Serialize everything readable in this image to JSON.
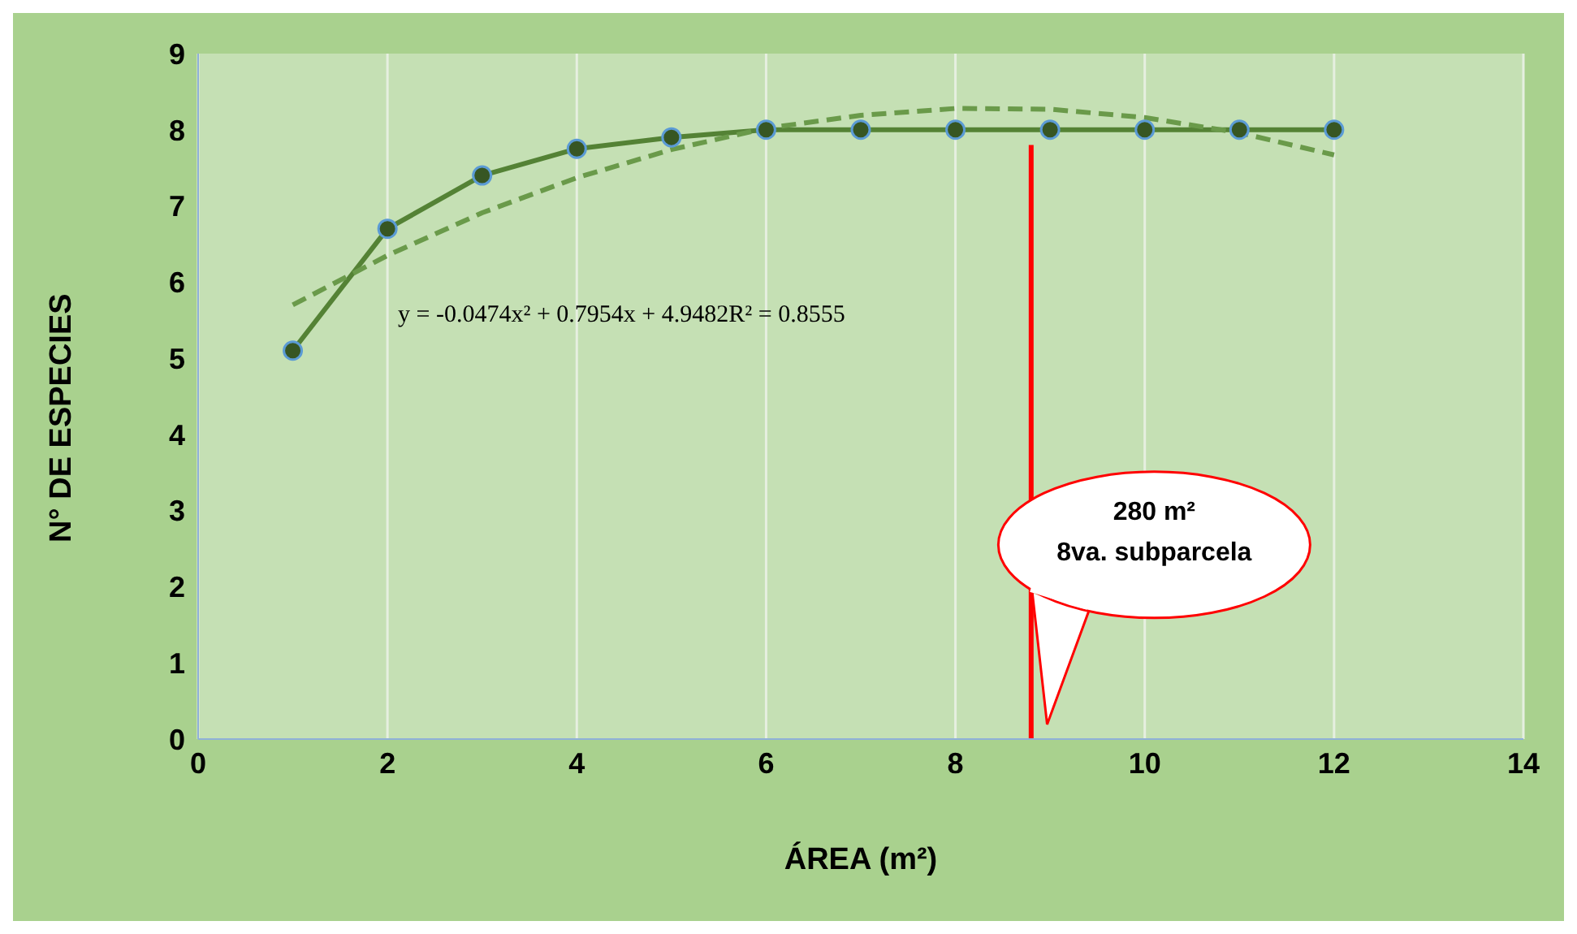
{
  "chart_data": {
    "type": "line",
    "xlabel": "ÁREA (m²)",
    "ylabel": "N° DE ESPECIES",
    "xlim": [
      0,
      14
    ],
    "xticks": [
      0,
      2,
      4,
      6,
      8,
      10,
      12,
      14
    ],
    "ylim": [
      0,
      9
    ],
    "yticks": [
      0,
      1,
      2,
      3,
      4,
      5,
      6,
      7,
      8,
      9
    ],
    "grid": "x",
    "marker": "circle",
    "series": [
      {
        "color": "#548235",
        "x": [
          1,
          2,
          3,
          4,
          5,
          6,
          7,
          8,
          9,
          10,
          11,
          12
        ],
        "values": [
          5.1,
          6.7,
          7.4,
          7.75,
          7.9,
          8.0,
          8.0,
          8.0,
          8.0,
          8.0,
          8.0,
          8.0
        ]
      },
      {
        "color": "#6a9a4a",
        "line_style": "dashed",
        "marker": "none",
        "x": [
          1,
          2,
          3,
          4,
          5,
          6,
          7,
          8,
          9,
          10,
          11,
          12
        ],
        "values": [
          5.7,
          6.35,
          6.91,
          7.37,
          7.74,
          8.02,
          8.19,
          8.28,
          8.27,
          8.16,
          7.96,
          7.67
        ]
      },
      {
        "color": "#ff0000",
        "marker": "none",
        "x": [
          8.8,
          8.8
        ],
        "values": [
          0,
          7.8
        ]
      }
    ],
    "annotations": [
      "y = -0.0474x² + 0.7954x + 4.9482R² = 0.8555",
      "280 m²",
      "8va. subparcela"
    ]
  }
}
